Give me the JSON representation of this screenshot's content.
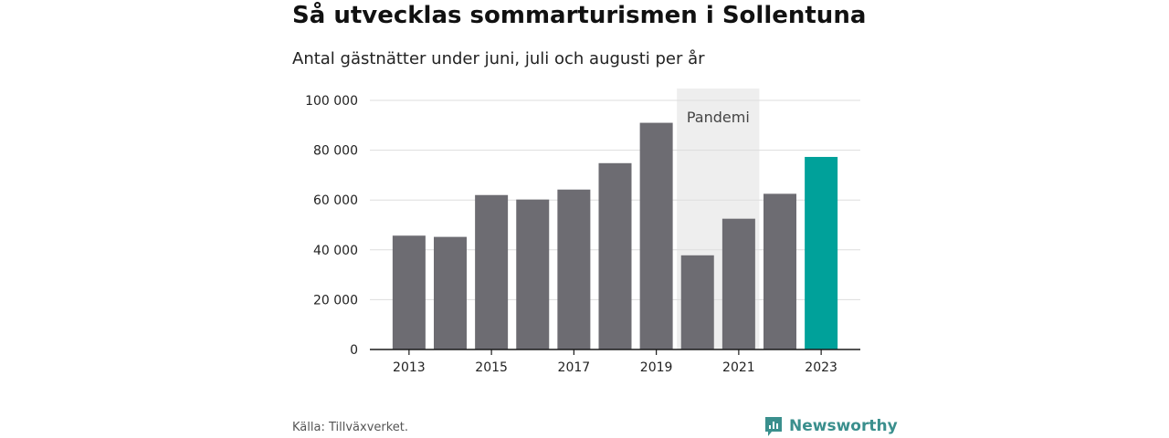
{
  "header": {
    "title": "Så utvecklas sommarturismen i Sollentuna",
    "subtitle": "Antal gästnätter under juni, juli och augusti per år"
  },
  "footer": {
    "source": "Källa: Tillväxverket.",
    "brand": "Newsworthy",
    "brand_icon": "newsworthy-logo-icon"
  },
  "colors": {
    "bar": "#6d6c72",
    "highlight": "#00a19a",
    "band": "#eeeeee",
    "grid": "#dddddd",
    "axis": "#1a1a1a"
  },
  "chart_data": {
    "type": "bar",
    "categories": [
      "2013",
      "2014",
      "2015",
      "2016",
      "2017",
      "2018",
      "2019",
      "2020",
      "2021",
      "2022",
      "2023"
    ],
    "values": [
      45700,
      45200,
      62000,
      60200,
      64200,
      74800,
      91000,
      37800,
      52500,
      62500,
      77300
    ],
    "highlight_index": 10,
    "x_tick_labels": [
      "2013",
      "2015",
      "2017",
      "2019",
      "2021",
      "2023"
    ],
    "y_ticks": [
      0,
      20000,
      40000,
      60000,
      80000,
      100000
    ],
    "y_tick_labels": [
      "0",
      "20 000",
      "40 000",
      "60 000",
      "80 000",
      "100 000"
    ],
    "ylim": [
      0,
      100000
    ],
    "grid": true,
    "annotation": {
      "label": "Pandemi",
      "from": "2020",
      "to": "2021"
    }
  }
}
